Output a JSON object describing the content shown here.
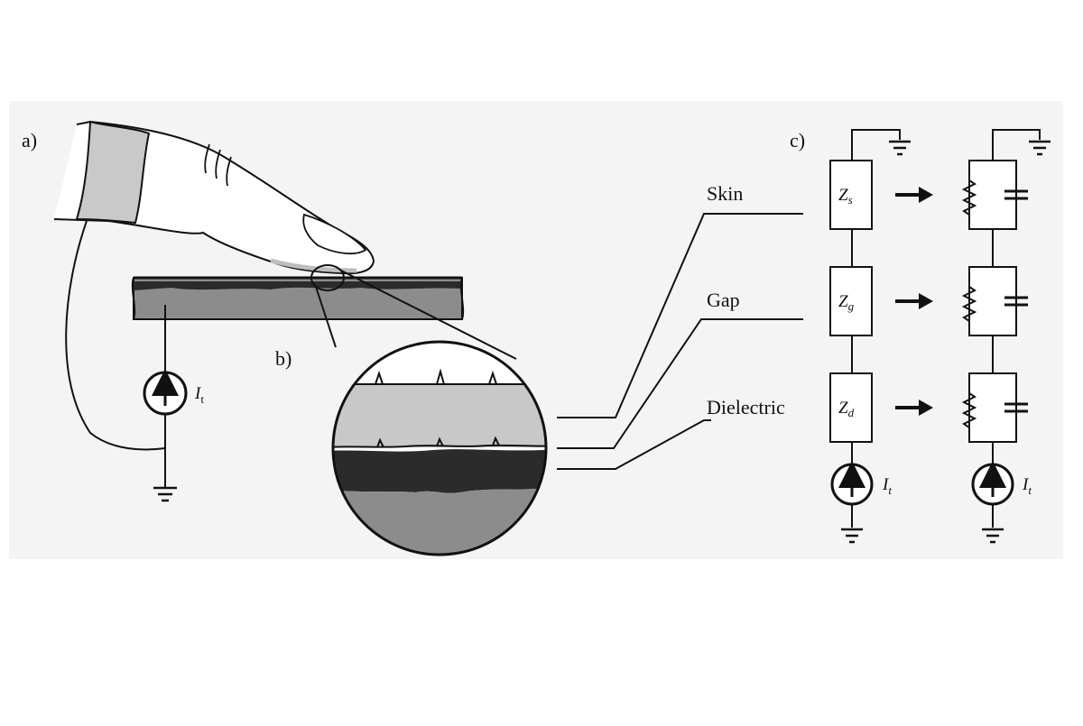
{
  "panels": {
    "a": "a)",
    "b": "b)",
    "c": "c)"
  },
  "layers": {
    "skin": "Skin",
    "gap": "Gap",
    "dielectric": "Dielectric"
  },
  "impedances": {
    "skin": {
      "symbol": "Z",
      "subscript": "s"
    },
    "gap": {
      "symbol": "Z",
      "subscript": "g"
    },
    "dielectric": {
      "symbol": "Z",
      "subscript": "d"
    }
  },
  "current_source": {
    "symbol": "I",
    "subscript": "t"
  },
  "icons": [
    "finger-icon",
    "ground-icon",
    "current-source-icon",
    "resistor-icon",
    "capacitor-icon",
    "arrow-icon",
    "magnifier-icon"
  ],
  "colors": {
    "skin_fill": "#c8c8c8",
    "dielectric_fill": "#8c8c8c",
    "dark_layer": "#2b2b2b",
    "line": "#111111"
  }
}
